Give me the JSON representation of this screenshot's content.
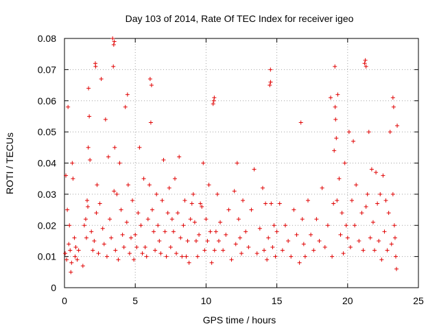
{
  "chart_data": {
    "type": "scatter",
    "title": "Day 103 of 2014, Rate Of TEC Index for receiver igeo",
    "xlabel": "GPS time / hours",
    "ylabel": "ROTI / TECUs",
    "xlim": [
      0,
      25
    ],
    "ylim": [
      0,
      0.08
    ],
    "xticks": [
      0,
      5,
      10,
      15,
      20,
      25
    ],
    "xtick_labels": [
      "0",
      "5",
      "10",
      "15",
      "20",
      "25"
    ],
    "yticks": [
      0,
      0.01,
      0.02,
      0.03,
      0.04,
      0.05,
      0.06,
      0.07,
      0.08
    ],
    "ytick_labels": [
      "0",
      "0.01",
      "0.02",
      "0.03",
      "0.04",
      "0.05",
      "0.06",
      "0.07",
      "0.08"
    ],
    "grid": true,
    "marker": "plus",
    "marker_color": "#e00000",
    "series": [
      {
        "name": "ROTI",
        "x": [
          0.05,
          0.1,
          0.15,
          0.2,
          0.25,
          0.3,
          0.35,
          0.4,
          0.5,
          0.55,
          0.6,
          0.7,
          0.75,
          0.8,
          0.9,
          1.0,
          1.3,
          1.4,
          1.5,
          1.55,
          1.6,
          1.65,
          1.7,
          1.75,
          1.8,
          1.9,
          2.0,
          2.1,
          2.2,
          2.25,
          2.3,
          2.4,
          2.5,
          2.6,
          2.7,
          2.8,
          2.9,
          3.0,
          3.1,
          3.2,
          3.3,
          3.4,
          3.45,
          3.5,
          3.55,
          3.6,
          3.7,
          3.8,
          3.9,
          4.0,
          4.1,
          4.2,
          4.3,
          4.4,
          4.45,
          4.5,
          4.6,
          4.7,
          4.8,
          4.9,
          5.0,
          5.1,
          5.2,
          5.3,
          5.4,
          5.5,
          5.6,
          5.7,
          5.8,
          5.9,
          6.0,
          6.05,
          6.1,
          6.2,
          6.3,
          6.4,
          6.5,
          6.6,
          6.7,
          6.8,
          6.9,
          7.0,
          7.1,
          7.2,
          7.3,
          7.4,
          7.5,
          7.6,
          7.7,
          7.8,
          7.9,
          8.0,
          8.1,
          8.2,
          8.3,
          8.4,
          8.5,
          8.6,
          8.7,
          8.8,
          8.9,
          9.0,
          9.1,
          9.2,
          9.3,
          9.4,
          9.5,
          9.6,
          9.7,
          9.8,
          9.9,
          10.0,
          10.1,
          10.2,
          10.3,
          10.4,
          10.5,
          10.55,
          10.6,
          10.7,
          10.8,
          10.9,
          11.0,
          11.2,
          11.4,
          11.6,
          11.8,
          12.0,
          12.1,
          12.2,
          12.3,
          12.4,
          12.5,
          12.6,
          12.8,
          13.0,
          13.2,
          13.4,
          13.6,
          13.8,
          14.0,
          14.1,
          14.2,
          14.3,
          14.4,
          14.5,
          14.55,
          14.6,
          14.7,
          14.8,
          14.9,
          15.0,
          15.2,
          15.4,
          15.6,
          15.8,
          16.0,
          16.2,
          16.4,
          16.6,
          16.7,
          16.8,
          16.9,
          17.0,
          17.2,
          17.4,
          17.6,
          17.8,
          18.0,
          18.2,
          18.4,
          18.6,
          18.8,
          18.9,
          19.0,
          19.05,
          19.1,
          19.15,
          19.2,
          19.25,
          19.3,
          19.4,
          19.5,
          19.6,
          19.7,
          19.8,
          19.9,
          20.0,
          20.1,
          20.2,
          20.3,
          20.4,
          20.5,
          20.6,
          20.8,
          21.0,
          21.1,
          21.2,
          21.25,
          21.3,
          21.4,
          21.5,
          21.6,
          21.7,
          21.8,
          21.9,
          22.0,
          22.1,
          22.2,
          22.3,
          22.4,
          22.5,
          22.6,
          22.7,
          22.8,
          22.9,
          23.0,
          23.1,
          23.2,
          23.25,
          23.3,
          23.35,
          23.4,
          23.45,
          23.5,
          0.45,
          3.52,
          3.48,
          2.18,
          6.15,
          10.58,
          14.56,
          19.12,
          21.3,
          23.2,
          1.68
        ],
        "y": [
          0.011,
          0.036,
          0.009,
          0.025,
          0.058,
          0.014,
          0.02,
          0.012,
          0.008,
          0.04,
          0.035,
          0.016,
          0.01,
          0.013,
          0.009,
          0.012,
          0.007,
          0.02,
          0.022,
          0.016,
          0.028,
          0.026,
          0.064,
          0.055,
          0.041,
          0.018,
          0.012,
          0.015,
          0.071,
          0.024,
          0.033,
          0.011,
          0.027,
          0.067,
          0.019,
          0.014,
          0.054,
          0.01,
          0.042,
          0.022,
          0.016,
          0.08,
          0.071,
          0.031,
          0.045,
          0.012,
          0.03,
          0.009,
          0.04,
          0.025,
          0.017,
          0.013,
          0.058,
          0.021,
          0.062,
          0.033,
          0.011,
          0.016,
          0.028,
          0.009,
          0.017,
          0.013,
          0.024,
          0.045,
          0.02,
          0.011,
          0.035,
          0.013,
          0.01,
          0.022,
          0.033,
          0.067,
          0.053,
          0.025,
          0.018,
          0.012,
          0.03,
          0.02,
          0.015,
          0.011,
          0.028,
          0.041,
          0.018,
          0.01,
          0.024,
          0.032,
          0.013,
          0.022,
          0.018,
          0.035,
          0.011,
          0.024,
          0.042,
          0.016,
          0.01,
          0.02,
          0.028,
          0.01,
          0.015,
          0.008,
          0.022,
          0.027,
          0.03,
          0.021,
          0.015,
          0.01,
          0.017,
          0.027,
          0.026,
          0.04,
          0.012,
          0.022,
          0.015,
          0.033,
          0.018,
          0.008,
          0.059,
          0.06,
          0.012,
          0.018,
          0.03,
          0.015,
          0.021,
          0.012,
          0.017,
          0.025,
          0.009,
          0.031,
          0.014,
          0.04,
          0.022,
          0.016,
          0.011,
          0.028,
          0.018,
          0.013,
          0.025,
          0.038,
          0.011,
          0.019,
          0.032,
          0.012,
          0.027,
          0.009,
          0.016,
          0.065,
          0.07,
          0.027,
          0.013,
          0.02,
          0.01,
          0.018,
          0.027,
          0.012,
          0.02,
          0.015,
          0.01,
          0.025,
          0.017,
          0.008,
          0.053,
          0.022,
          0.014,
          0.01,
          0.028,
          0.017,
          0.012,
          0.022,
          0.015,
          0.032,
          0.013,
          0.02,
          0.061,
          0.01,
          0.027,
          0.044,
          0.071,
          0.054,
          0.048,
          0.028,
          0.062,
          0.035,
          0.017,
          0.024,
          0.011,
          0.04,
          0.02,
          0.016,
          0.05,
          0.013,
          0.028,
          0.047,
          0.02,
          0.033,
          0.015,
          0.024,
          0.012,
          0.072,
          0.073,
          0.026,
          0.03,
          0.05,
          0.016,
          0.038,
          0.021,
          0.012,
          0.037,
          0.027,
          0.015,
          0.03,
          0.009,
          0.036,
          0.018,
          0.028,
          0.012,
          0.024,
          0.05,
          0.014,
          0.03,
          0.058,
          0.02,
          0.016,
          0.01,
          0.006,
          0.052,
          0.005,
          0.079,
          0.078,
          0.072,
          0.065,
          0.061,
          0.066,
          0.058,
          0.071,
          0.061,
          0.045
        ]
      }
    ]
  }
}
